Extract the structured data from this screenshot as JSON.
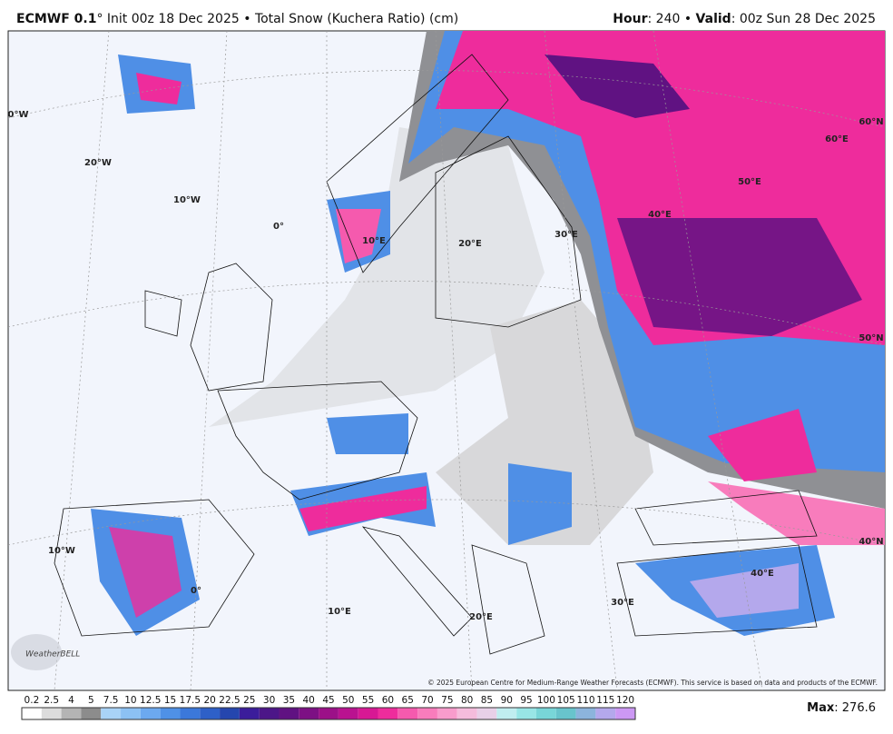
{
  "header": {
    "model": "ECMWF 0.1",
    "title_rest": "° Init 00z 18 Dec 2025 • Total Snow (Kuchera Ratio) (cm)",
    "hour_label": "Hour",
    "hour_value": ": 240 • ",
    "valid_label": "Valid",
    "valid_value": ": 00z Sun 28 Dec 2025"
  },
  "map": {
    "grid_labels": [
      "0°W",
      "20°W",
      "10°W",
      "0°",
      "10°E",
      "20°E",
      "30°E",
      "40°E",
      "50°E",
      "60°E",
      "60°N",
      "50°N",
      "40°N",
      "10°W",
      "0°",
      "10°E",
      "20°E",
      "30°E",
      "40°E"
    ],
    "copyright": "© 2025 European Centre for Medium-Range Weather Forecasts (ECMWF). This service is based on data and products of the ECMWF.",
    "logo": "WeatherBELL"
  },
  "colorbar": {
    "labels": [
      "0.2",
      "2.5",
      "4",
      "5",
      "7.5",
      "10",
      "12.5",
      "15",
      "17.5",
      "20",
      "22.5",
      "25",
      "30",
      "35",
      "40",
      "45",
      "50",
      "55",
      "60",
      "65",
      "70",
      "75",
      "80",
      "85",
      "90",
      "95",
      "100",
      "105",
      "110",
      "115",
      "120"
    ],
    "colors": [
      "#ffffff",
      "#dcdcdc",
      "#b4b4b4",
      "#8c8c8c",
      "#a9d3f7",
      "#8cc1f4",
      "#6ca9ef",
      "#4f91e6",
      "#3b78da",
      "#2e60c8",
      "#2546ae",
      "#3b1d9b",
      "#4c1688",
      "#601282",
      "#7d1084",
      "#9c1088",
      "#ba1290",
      "#d81894",
      "#ee2c9c",
      "#f55aae",
      "#f87cbc",
      "#f89ccc",
      "#f5bcdc",
      "#e8d0e8",
      "#c0eef0",
      "#98e6e6",
      "#78d6d8",
      "#68c4cc",
      "#8cb4dc",
      "#b4a8ec",
      "#cc98f4"
    ]
  },
  "footer": {
    "max_label": "Max",
    "max_value": ": 276.6"
  }
}
